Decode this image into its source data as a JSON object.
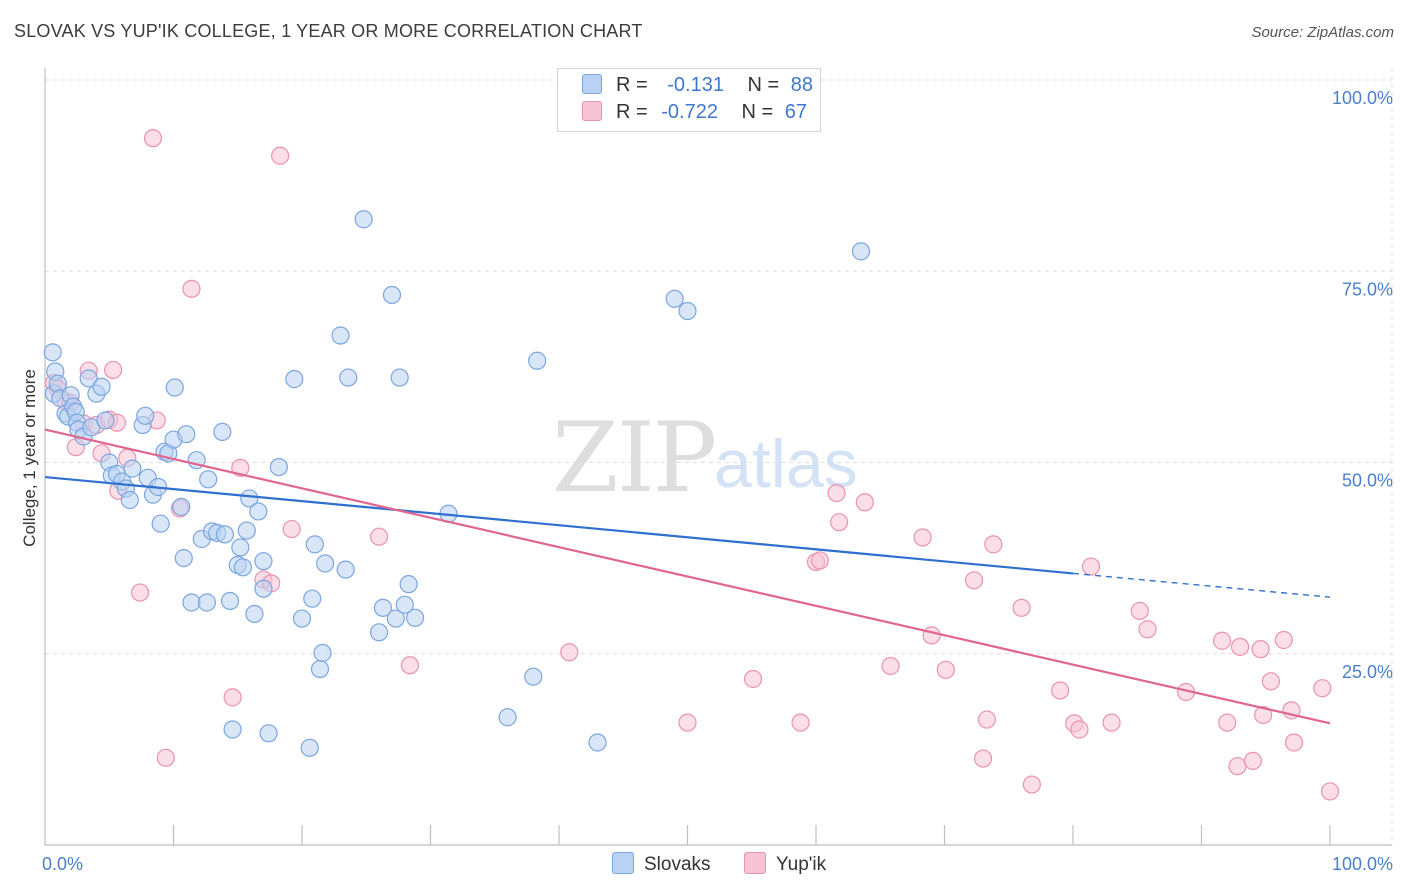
{
  "header": {
    "title": "SLOVAK VS YUP'IK COLLEGE, 1 YEAR OR MORE CORRELATION CHART",
    "source": "Source: ZipAtlas.com"
  },
  "watermark": {
    "zip": "ZIP",
    "atlas": "atlas"
  },
  "legend": {
    "rows": [
      {
        "r_label": "R =",
        "r_value": "-0.131",
        "n_label": "N =",
        "n_value": "88",
        "color": "#b9d2f3"
      },
      {
        "r_label": "R =",
        "r_value": "-0.722",
        "n_label": "N =",
        "n_value": "67",
        "color": "#f8c3d4"
      }
    ]
  },
  "bottom_legend": [
    {
      "label": "Slovaks",
      "color": "#b9d2f3"
    },
    {
      "label": "Yup'ik",
      "color": "#f8c3d4"
    }
  ],
  "colors": {
    "slovaks_fill": "#b9d2f3",
    "slovaks_stroke": "#7ba6e0",
    "slovaks_line": "#2f6fd0",
    "yupik_fill": "#f8c3d4",
    "yupik_stroke": "#ea93b0",
    "yupik_line": "#e0668f",
    "tick_text": "#4a7fd0"
  },
  "chart_data": {
    "type": "scatter",
    "title": "SLOVAK VS YUP'IK COLLEGE, 1 YEAR OR MORE CORRELATION CHART",
    "xlabel": "",
    "ylabel": "College, 1 year or more",
    "xlim": [
      0,
      100
    ],
    "ylim": [
      0,
      100
    ],
    "x_tick_labels": [
      "0.0%",
      "100.0%"
    ],
    "y_tick_labels": [
      "25.0%",
      "50.0%",
      "75.0%",
      "100.0%"
    ],
    "y_ticks": [
      25,
      50,
      75,
      100
    ],
    "grid": true,
    "legend_position": "top-center",
    "series": [
      {
        "name": "Slovaks",
        "r": -0.131,
        "n": 88,
        "trend": {
          "x": [
            0,
            80
          ],
          "y": [
            48.1,
            35.5
          ],
          "dashed_to": [
            100,
            32.4
          ]
        },
        "points": [
          [
            0.6,
            64.4
          ],
          [
            0.7,
            59.0
          ],
          [
            0.8,
            61.9
          ],
          [
            1.0,
            60.3
          ],
          [
            1.2,
            58.4
          ],
          [
            1.6,
            56.4
          ],
          [
            1.8,
            56.0
          ],
          [
            2.0,
            58.8
          ],
          [
            2.2,
            57.3
          ],
          [
            2.4,
            56.6
          ],
          [
            2.5,
            55.2
          ],
          [
            2.6,
            54.3
          ],
          [
            3.0,
            53.4
          ],
          [
            3.4,
            61.0
          ],
          [
            3.6,
            54.6
          ],
          [
            4.0,
            59.0
          ],
          [
            4.4,
            59.9
          ],
          [
            4.7,
            55.5
          ],
          [
            5.0,
            50.0
          ],
          [
            5.2,
            48.3
          ],
          [
            5.6,
            48.5
          ],
          [
            6.0,
            47.5
          ],
          [
            6.3,
            46.6
          ],
          [
            6.6,
            45.1
          ],
          [
            6.8,
            49.2
          ],
          [
            7.6,
            54.9
          ],
          [
            7.8,
            56.1
          ],
          [
            8.0,
            48.0
          ],
          [
            8.4,
            45.8
          ],
          [
            8.8,
            46.8
          ],
          [
            9.0,
            42.0
          ],
          [
            9.3,
            51.4
          ],
          [
            9.6,
            51.2
          ],
          [
            10.0,
            53.0
          ],
          [
            10.1,
            59.8
          ],
          [
            10.6,
            44.2
          ],
          [
            10.8,
            37.5
          ],
          [
            11.0,
            53.7
          ],
          [
            11.4,
            31.7
          ],
          [
            11.8,
            50.3
          ],
          [
            12.2,
            40.0
          ],
          [
            12.6,
            31.7
          ],
          [
            12.7,
            47.8
          ],
          [
            13.0,
            41.0
          ],
          [
            13.4,
            40.8
          ],
          [
            13.8,
            54.0
          ],
          [
            14.0,
            40.6
          ],
          [
            14.4,
            31.9
          ],
          [
            14.6,
            15.1
          ],
          [
            15.0,
            36.6
          ],
          [
            15.2,
            38.9
          ],
          [
            15.4,
            36.3
          ],
          [
            15.7,
            41.1
          ],
          [
            15.9,
            45.3
          ],
          [
            16.3,
            30.2
          ],
          [
            16.6,
            43.6
          ],
          [
            17.0,
            37.1
          ],
          [
            17.0,
            33.5
          ],
          [
            17.4,
            14.6
          ],
          [
            18.2,
            49.4
          ],
          [
            19.4,
            60.9
          ],
          [
            20.0,
            29.6
          ],
          [
            20.6,
            12.7
          ],
          [
            20.8,
            32.2
          ],
          [
            21.0,
            39.3
          ],
          [
            21.4,
            23.0
          ],
          [
            21.6,
            25.1
          ],
          [
            21.8,
            36.8
          ],
          [
            23.0,
            66.6
          ],
          [
            23.4,
            36.0
          ],
          [
            23.6,
            61.1
          ],
          [
            24.8,
            81.8
          ],
          [
            26.0,
            27.8
          ],
          [
            26.3,
            31.0
          ],
          [
            27.0,
            71.9
          ],
          [
            27.3,
            29.6
          ],
          [
            27.6,
            61.1
          ],
          [
            28.0,
            31.4
          ],
          [
            28.3,
            34.1
          ],
          [
            28.8,
            29.7
          ],
          [
            31.4,
            43.3
          ],
          [
            36.0,
            16.7
          ],
          [
            38.0,
            22.0
          ],
          [
            38.3,
            63.3
          ],
          [
            43.0,
            13.4
          ],
          [
            49.0,
            71.4
          ],
          [
            50.0,
            69.8
          ],
          [
            63.5,
            77.6
          ]
        ]
      },
      {
        "name": "Yup'ik",
        "r": -0.722,
        "n": 67,
        "trend": {
          "x": [
            0,
            100
          ],
          "y": [
            54.3,
            15.9
          ]
        },
        "points": [
          [
            0.7,
            60.4
          ],
          [
            1.0,
            59.6
          ],
          [
            1.6,
            58.0
          ],
          [
            2.0,
            57.8
          ],
          [
            2.4,
            52.0
          ],
          [
            3.0,
            55.1
          ],
          [
            3.4,
            62.0
          ],
          [
            4.0,
            54.9
          ],
          [
            4.4,
            51.2
          ],
          [
            5.0,
            55.6
          ],
          [
            5.3,
            62.1
          ],
          [
            5.6,
            55.2
          ],
          [
            5.7,
            46.3
          ],
          [
            6.4,
            50.6
          ],
          [
            7.4,
            33.0
          ],
          [
            8.4,
            92.4
          ],
          [
            8.7,
            55.5
          ],
          [
            9.4,
            11.4
          ],
          [
            10.5,
            44.0
          ],
          [
            11.4,
            72.7
          ],
          [
            14.6,
            19.3
          ],
          [
            15.2,
            49.3
          ],
          [
            17.0,
            34.7
          ],
          [
            17.6,
            34.2
          ],
          [
            18.3,
            90.1
          ],
          [
            19.2,
            41.3
          ],
          [
            26.0,
            40.3
          ],
          [
            28.4,
            23.5
          ],
          [
            40.8,
            25.2
          ],
          [
            50.0,
            16.0
          ],
          [
            55.1,
            21.7
          ],
          [
            58.8,
            16.0
          ],
          [
            60.0,
            37.0
          ],
          [
            60.3,
            37.2
          ],
          [
            61.6,
            46.0
          ],
          [
            61.8,
            42.2
          ],
          [
            63.8,
            44.8
          ],
          [
            65.8,
            23.4
          ],
          [
            68.3,
            40.2
          ],
          [
            69.0,
            27.4
          ],
          [
            70.1,
            22.9
          ],
          [
            72.3,
            34.6
          ],
          [
            73.0,
            11.3
          ],
          [
            73.3,
            16.4
          ],
          [
            73.8,
            39.3
          ],
          [
            76.0,
            31.0
          ],
          [
            76.8,
            7.9
          ],
          [
            79.0,
            20.2
          ],
          [
            80.1,
            15.9
          ],
          [
            80.5,
            15.1
          ],
          [
            81.4,
            36.4
          ],
          [
            83.0,
            16.0
          ],
          [
            85.2,
            30.6
          ],
          [
            85.8,
            28.2
          ],
          [
            88.8,
            20.0
          ],
          [
            91.6,
            26.7
          ],
          [
            92.0,
            16.0
          ],
          [
            92.8,
            10.3
          ],
          [
            93.0,
            25.9
          ],
          [
            94.0,
            11.0
          ],
          [
            94.6,
            25.6
          ],
          [
            94.8,
            17.0
          ],
          [
            95.4,
            21.4
          ],
          [
            96.4,
            26.8
          ],
          [
            97.0,
            17.6
          ],
          [
            97.2,
            13.4
          ],
          [
            99.4,
            20.5
          ],
          [
            100.0,
            7.0
          ]
        ]
      }
    ]
  }
}
